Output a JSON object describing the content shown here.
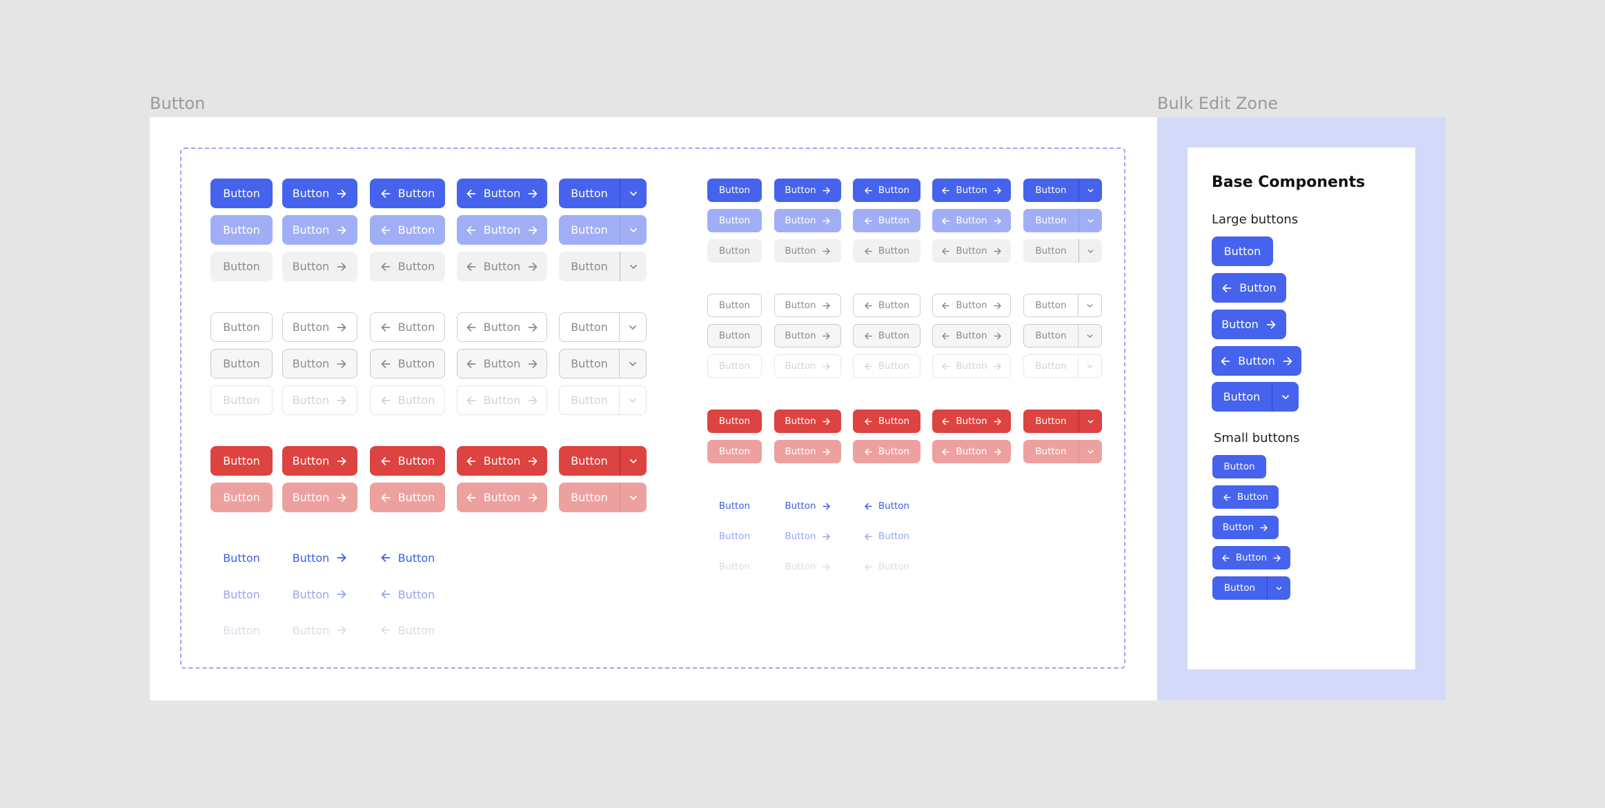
{
  "frames": {
    "button_frame_label": "Button",
    "bulk_zone_label": "Bulk Edit Zone"
  },
  "button_label": "Button",
  "base_components": {
    "title": "Base Components",
    "large_label": "Large buttons",
    "small_label": "Small buttons"
  },
  "colors": {
    "primary": "#4563ec",
    "primary_light": "#a0aff5",
    "danger": "#dd4340",
    "danger_light": "#eda19f",
    "neutral": "#f1f1f2",
    "bulk_zone_bg": "#d3d9f9",
    "dashed_border": "#a6a1ef"
  },
  "icons": {
    "left": "arrow-left-icon",
    "right": "arrow-right-icon",
    "caret": "chevron-down-icon"
  },
  "variants": {
    "filled_rows": [
      "primary",
      "primary-hover",
      "neutral"
    ],
    "outline_rows": [
      "outline",
      "outline-hover",
      "outline-disabled"
    ],
    "danger_rows": [
      "danger",
      "danger-light"
    ],
    "link_rows": [
      "link",
      "link-light",
      "link-disabled"
    ],
    "columns": [
      "label",
      "label-arrow-right",
      "arrow-left-label",
      "arrow-left-label-arrow-right",
      "split-dropdown"
    ]
  }
}
